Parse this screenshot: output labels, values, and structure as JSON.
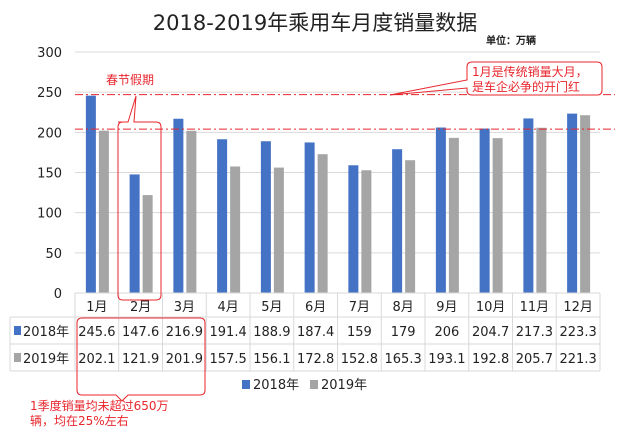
{
  "chart_data": {
    "type": "bar",
    "title": "2018-2019年乘用车月度销量数据",
    "unit_label": "单位：万辆",
    "categories": [
      "1月",
      "2月",
      "3月",
      "4月",
      "5月",
      "6月",
      "7月",
      "8月",
      "9月",
      "10月",
      "11月",
      "12月"
    ],
    "series": [
      {
        "name": "2018年",
        "color": "#4472C4",
        "values": [
          245.6,
          147.6,
          216.9,
          191.4,
          188.9,
          187.4,
          159,
          179,
          206,
          204.7,
          217.3,
          223.3
        ]
      },
      {
        "name": "2019年",
        "color": "#A5A5A5",
        "values": [
          202.1,
          121.9,
          201.9,
          157.5,
          156.1,
          172.8,
          152.8,
          165.3,
          193.1,
          192.8,
          205.7,
          221.3
        ]
      }
    ],
    "ylim": [
      0,
      300
    ],
    "yticks": [
      "0",
      "50",
      "100",
      "150",
      "200",
      "250",
      "300"
    ],
    "grid": true,
    "legend": "bottom",
    "data_table": true,
    "reference_lines": [
      247,
      204
    ],
    "annotations": {
      "spring_festival": "春节假期",
      "january_note_line1": "1月是传统销量大月，",
      "january_note_line2": "是车企必争的开门红",
      "q1_note_line1": "1季度销量均未超过650万",
      "q1_note_line2": "辆，均在25%左右"
    },
    "annotation_color": "#E8262D"
  }
}
